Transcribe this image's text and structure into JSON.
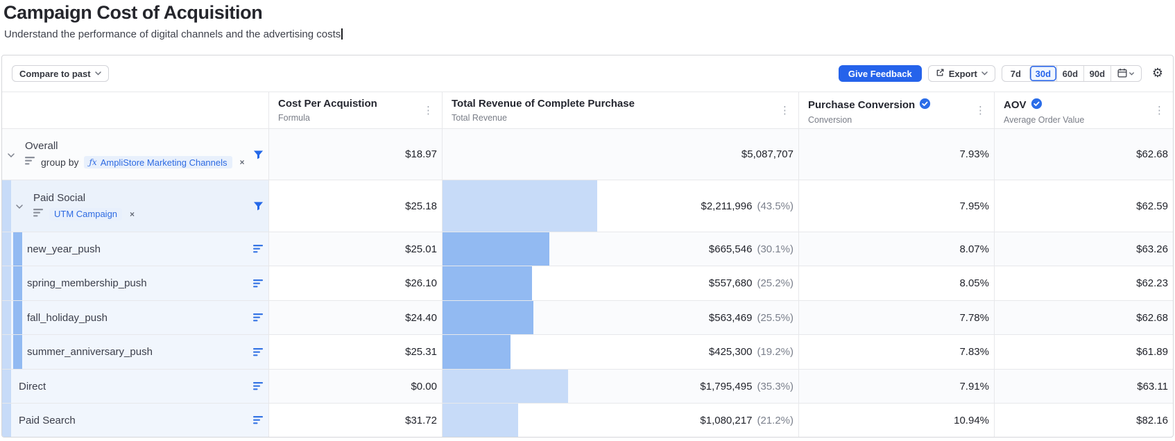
{
  "page": {
    "title": "Campaign Cost of Acquisition",
    "subtitle": "Understand the performance of digital channels and the advertising costs"
  },
  "toolbar": {
    "compare_label": "Compare to past",
    "give_feedback_label": "Give Feedback",
    "export_label": "Export",
    "ranges": [
      "7d",
      "30d",
      "60d",
      "90d"
    ],
    "selected_range": "30d"
  },
  "columns": [
    {
      "title": "Cost Per Acquistion",
      "subtitle": "Formula",
      "verified": false
    },
    {
      "title": "Total Revenue of Complete Purchase",
      "subtitle": "Total Revenue",
      "verified": false
    },
    {
      "title": "Purchase Conversion",
      "subtitle": "Conversion",
      "verified": true
    },
    {
      "title": "AOV",
      "subtitle": "Average Order Value",
      "verified": true
    }
  ],
  "rows": [
    {
      "label": "Overall",
      "groupby_label": "group by",
      "chip": "AmpliStore Marketing Channels",
      "cpa": "$18.97",
      "revenue": "$5,087,707",
      "revenue_pct": "",
      "bar_pct": 0,
      "bar_shade": "",
      "conversion": "7.93%",
      "aov": "$62.68"
    },
    {
      "label": "Paid Social",
      "chip": "UTM Campaign",
      "cpa": "$25.18",
      "revenue": "$2,211,996",
      "revenue_pct": "(43.5%)",
      "bar_pct": 43.5,
      "bar_shade": "light",
      "conversion": "7.95%",
      "aov": "$62.59"
    },
    {
      "label": "new_year_push",
      "cpa": "$25.01",
      "revenue": "$665,546",
      "revenue_pct": "(30.1%)",
      "bar_pct": 30.1,
      "bar_shade": "medium",
      "conversion": "8.07%",
      "aov": "$63.26"
    },
    {
      "label": "spring_membership_push",
      "cpa": "$26.10",
      "revenue": "$557,680",
      "revenue_pct": "(25.2%)",
      "bar_pct": 25.2,
      "bar_shade": "medium",
      "conversion": "8.05%",
      "aov": "$62.23"
    },
    {
      "label": "fall_holiday_push",
      "cpa": "$24.40",
      "revenue": "$563,469",
      "revenue_pct": "(25.5%)",
      "bar_pct": 25.5,
      "bar_shade": "medium",
      "conversion": "7.78%",
      "aov": "$62.68"
    },
    {
      "label": "summer_anniversary_push",
      "cpa": "$25.31",
      "revenue": "$425,300",
      "revenue_pct": "(19.2%)",
      "bar_pct": 19.2,
      "bar_shade": "medium",
      "conversion": "7.83%",
      "aov": "$61.89"
    },
    {
      "label": "Direct",
      "cpa": "$0.00",
      "revenue": "$1,795,495",
      "revenue_pct": "(35.3%)",
      "bar_pct": 35.3,
      "bar_shade": "light",
      "conversion": "7.91%",
      "aov": "$63.11"
    },
    {
      "label": "Paid Search",
      "cpa": "$31.72",
      "revenue": "$1,080,217",
      "revenue_pct": "(21.2%)",
      "bar_pct": 21.2,
      "bar_shade": "light",
      "conversion": "10.94%",
      "aov": "$82.16"
    }
  ],
  "glyphs": {
    "fx": "ƒx",
    "close": "×",
    "kebab": "⋮",
    "gear": "⚙"
  },
  "colors": {
    "accent_blue": "#2563eb",
    "bar_light": "#c7dbf8",
    "bar_medium": "#92baf2",
    "chip_bg": "#e8f0fc",
    "chip_text": "#2d6ae2",
    "verified_badge": "#2b6de8"
  }
}
